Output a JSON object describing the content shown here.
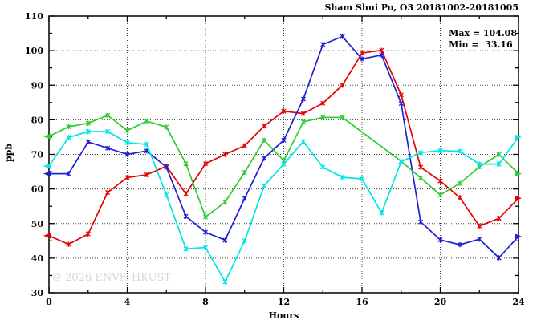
{
  "title": "Sham Shui Po, O3 20181002-20181005",
  "stats": {
    "max_label": "Max = 104.08",
    "min_label": "Min =  33.16"
  },
  "watermark": "© 2026 ENVF, HKUST",
  "colors": {
    "background": "#ffffff",
    "axis": "#000000",
    "grid": "#404040",
    "watermark": "#d6d6d6"
  },
  "chart_data": {
    "type": "line",
    "title": "Sham Shui Po, O3 20181002-20181005",
    "xlabel": "Hours",
    "ylabel": "ppb",
    "xlim": [
      0,
      24
    ],
    "ylim": [
      30,
      110
    ],
    "x_major_ticks": [
      0,
      4,
      8,
      12,
      16,
      20,
      24
    ],
    "x_minor_step": 2,
    "y_major_ticks": [
      30,
      40,
      50,
      60,
      70,
      80,
      90,
      100,
      110
    ],
    "y_minor_step": 5,
    "grid": "dotted lines at every major tick, box frame with mirrored ticks",
    "legend_position": "none",
    "max": 104.08,
    "min": 33.16,
    "x": [
      0,
      1,
      2,
      3,
      4,
      5,
      6,
      7,
      8,
      9,
      10,
      11,
      12,
      13,
      14,
      15,
      16,
      17,
      18,
      19,
      20,
      21,
      22,
      23,
      24
    ],
    "series": [
      {
        "name": "red",
        "color": "#e60000",
        "values": [
          46.5,
          44.0,
          47.0,
          59.0,
          63.3,
          64.1,
          66.6,
          58.6,
          67.3,
          70.0,
          72.5,
          78.2,
          82.5,
          81.8,
          84.8,
          90.0,
          99.3,
          100.1,
          87.2,
          66.3,
          62.3,
          57.5,
          49.3,
          51.5,
          57.3
        ]
      },
      {
        "name": "blue",
        "color": "#2020d0",
        "values": [
          64.4,
          64.4,
          73.6,
          71.8,
          70.0,
          71.0,
          66.3,
          52.1,
          47.5,
          45.2,
          57.3,
          68.9,
          74.1,
          86.0,
          101.8,
          104.08,
          97.6,
          98.7,
          84.7,
          50.5,
          45.3,
          43.9,
          45.5,
          40.1,
          46.3
        ]
      },
      {
        "name": "green",
        "color": "#30cc30",
        "values": [
          75.2,
          78.0,
          79.0,
          81.3,
          76.9,
          79.6,
          77.9,
          67.3,
          51.9,
          56.2,
          64.8,
          74.1,
          68.2,
          79.4,
          80.7,
          80.7,
          null,
          null,
          68.0,
          63.2,
          58.3,
          61.6,
          66.4,
          70.0,
          64.4
        ]
      },
      {
        "name": "cyan",
        "color": "#00e5e5",
        "values": [
          66.6,
          74.9,
          76.6,
          76.6,
          73.4,
          72.9,
          58.3,
          42.7,
          43.1,
          33.16,
          45.0,
          60.9,
          67.2,
          73.7,
          66.3,
          63.4,
          62.9,
          53.1,
          67.9,
          70.5,
          71.1,
          70.9,
          67.2,
          67.2,
          75.0
        ]
      }
    ]
  }
}
